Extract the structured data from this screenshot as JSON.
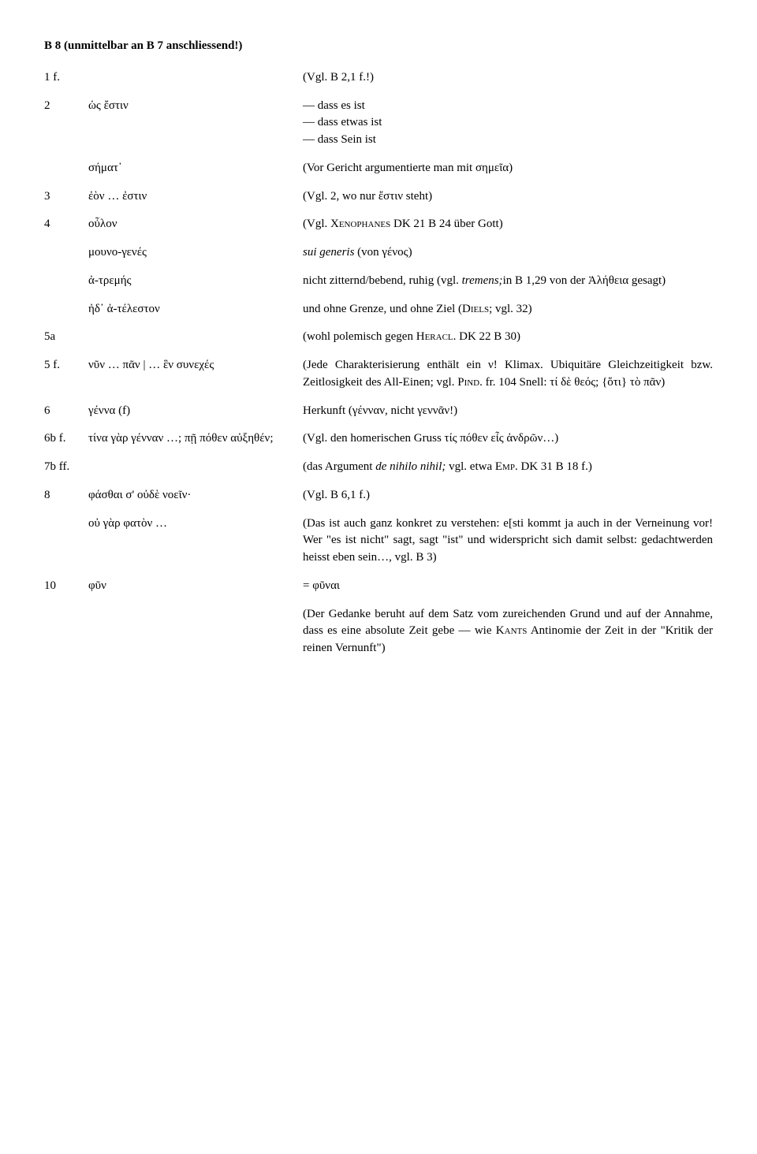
{
  "header": "B 8 (unmittelbar an B 7 anschliessend!)",
  "rows": [
    {
      "num": "1 f.",
      "greek": "",
      "gloss": "(Vgl. B 2,1 f.!)"
    },
    {
      "num": "2",
      "greek": "ὡς ἔστιν",
      "gloss": "— dass es ist\n— dass etwas ist\n— dass Sein ist"
    },
    {
      "num": "",
      "greek": "σήματ᾽",
      "gloss": "(Vor Gericht argumentierte man mit σημεῖα)"
    },
    {
      "num": "3",
      "greek": "ἐὸν … ἐστιν",
      "gloss": "(Vgl. 2, wo nur ἔστιν steht)"
    },
    {
      "num": "4",
      "greek": "οὖλον",
      "gloss_html": "(Vgl. X<span class='sc'>enophanes</span> DK 21 B 24 über Gott)"
    },
    {
      "num": "",
      "greek": "μουνο-γενές",
      "gloss_html": "<span class='italic'>sui generis</span> (von γένος)"
    },
    {
      "num": "",
      "greek": "ἀ-τρεμής",
      "gloss_html": "nicht zitternd/bebend, ruhig (vgl. <span class='italic'>tremens;</span>in B 1,29 von der Ἀλήθεια gesagt)"
    },
    {
      "num": "",
      "greek": "ἠδ᾽ ἀ-τέλεστον",
      "gloss_html": "und ohne Grenze, und ohne Ziel (D<span class='sc'>iels</span>; vgl. 32)"
    },
    {
      "num": "5a",
      "greek": "",
      "gloss_html": "(wohl polemisch gegen H<span class='sc'>eracl</span>. DK 22 B 30)"
    },
    {
      "num": "5 f.",
      "greek": "νῦν … πᾶν | … ἓν συνεχές",
      "gloss_html": "(Jede Charakterisierung enthält ein ν! Klimax. Ubiquitäre Gleichzeitigkeit bzw. Zeitlosigkeit des All-Einen; vgl. P<span class='sc'>ind</span>. fr. 104 Snell: τί δὲ θεός; {ὅτι} τὸ πᾶν)"
    },
    {
      "num": "6",
      "greek": "γέννα (f)",
      "gloss": "Herkunft (γένναν, nicht γεννᾶν!)"
    },
    {
      "num": "6b f.",
      "greek": "τίνα γὰρ γένναν …; πῇ πόθεν αὐξηθέν;",
      "gloss": "(Vgl. den homerischen Gruss τίς πόθεν εἶς ἀνδρῶν…)"
    },
    {
      "num": "7b ff.",
      "greek": "",
      "gloss_html": "(das Argument <span class='italic'>de nihilo nihil;</span> vgl. etwa E<span class='sc'>mp</span>. DK 31 B 18 f.)"
    },
    {
      "num": "8",
      "greek": "φάσθαι σ' οὐδὲ νοεῖν·",
      "gloss": "(Vgl. B 6,1 f.)"
    },
    {
      "num": "",
      "greek": "οὐ γὰρ φατὸν …",
      "gloss": "(Das ist auch ganz konkret zu verstehen: e[sti kommt ja auch in der Verneinung vor! Wer \"es ist nicht\" sagt, sagt \"ist\" und widerspricht sich damit selbst: gedachtwerden heisst eben sein…, vgl. B 3)"
    },
    {
      "num": "10",
      "greek": "φῦν",
      "gloss": "= φῦναι"
    }
  ],
  "tail_html": "(Der Gedanke beruht auf dem Satz vom zureichenden Grund und auf der Annahme, dass es eine absolute Zeit gebe — wie K<span class='sc'>ants</span> Antinomie der Zeit in der \"Kritik der reinen Vernunft\")"
}
